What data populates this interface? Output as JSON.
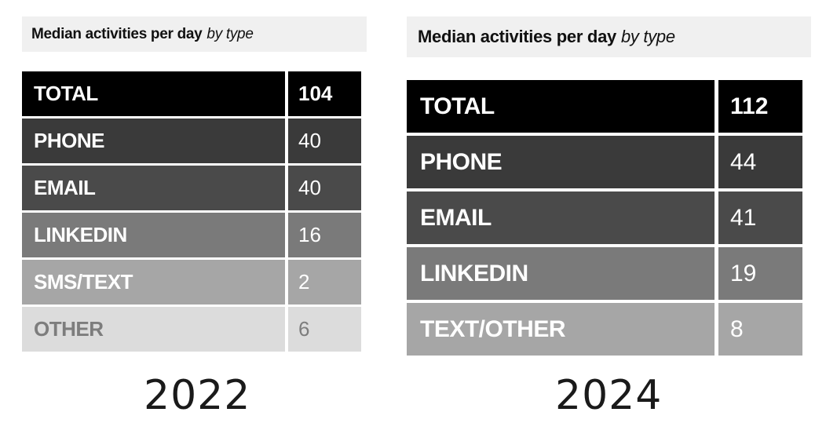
{
  "chart_data": [
    {
      "type": "table",
      "title": "Median activities per day",
      "subtitle": "by type",
      "year_label": "2022",
      "rows": [
        {
          "label": "TOTAL",
          "value": "104",
          "bg": "#000000",
          "fg": "#ffffff",
          "bold_value": true
        },
        {
          "label": "PHONE",
          "value": "40",
          "bg": "#3a3a3a",
          "fg": "#ffffff",
          "bold_value": false
        },
        {
          "label": "EMAIL",
          "value": "40",
          "bg": "#4a4a4a",
          "fg": "#ffffff",
          "bold_value": false
        },
        {
          "label": "LINKEDIN",
          "value": "16",
          "bg": "#7a7a7a",
          "fg": "#ffffff",
          "bold_value": false
        },
        {
          "label": "SMS/TEXT",
          "value": "2",
          "bg": "#a6a6a6",
          "fg": "#ffffff",
          "bold_value": false
        },
        {
          "label": "OTHER",
          "value": "6",
          "bg": "#dcdcdc",
          "fg": "#7d7d7d",
          "bold_value": false
        }
      ]
    },
    {
      "type": "table",
      "title": "Median activities per day",
      "subtitle": "by type",
      "year_label": "2024",
      "rows": [
        {
          "label": "TOTAL",
          "value": "112",
          "bg": "#000000",
          "fg": "#ffffff",
          "bold_value": true
        },
        {
          "label": "PHONE",
          "value": "44",
          "bg": "#3a3a3a",
          "fg": "#ffffff",
          "bold_value": false
        },
        {
          "label": "EMAIL",
          "value": "41",
          "bg": "#4a4a4a",
          "fg": "#ffffff",
          "bold_value": false
        },
        {
          "label": "LINKEDIN",
          "value": "19",
          "bg": "#7a7a7a",
          "fg": "#ffffff",
          "bold_value": false
        },
        {
          "label": "TEXT/OTHER",
          "value": "8",
          "bg": "#a6a6a6",
          "fg": "#ffffff",
          "bold_value": false
        }
      ]
    }
  ]
}
